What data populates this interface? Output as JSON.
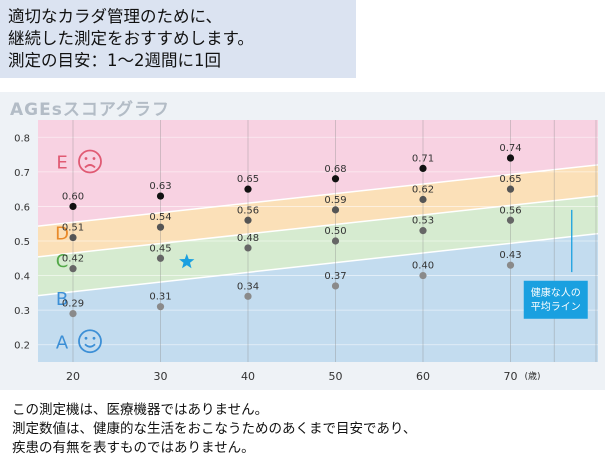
{
  "top_note": {
    "lines": [
      "適切なカラダ管理のために、",
      "継続した測定をおすすめします。",
      "測定の目安：1～2週間に1回"
    ]
  },
  "chart_title": "AGEsスコアグラフ",
  "chart_data": {
    "type": "line",
    "title": "AGEsスコアグラフ",
    "xlabel": "(歳)",
    "ylabel": "",
    "x": [
      20,
      30,
      40,
      50,
      60,
      70
    ],
    "xlim": [
      16,
      80
    ],
    "ylim": [
      0.15,
      0.85
    ],
    "yticks": [
      "0.2",
      "0.3",
      "0.4",
      "0.5",
      "0.6",
      "0.7",
      "0.8"
    ],
    "xticks": [
      "20",
      "30",
      "40",
      "50",
      "60",
      "70"
    ],
    "zone_labels": [
      "E",
      "D",
      "C",
      "B",
      "A"
    ],
    "zone_colors": [
      "#f8d2e2",
      "#fbe0b8",
      "#d6ebd0",
      "#c3dcef",
      "#c3dcef"
    ],
    "series": [
      {
        "values": [
          0.6,
          0.63,
          0.65,
          0.68,
          0.71,
          0.74
        ],
        "labels": [
          "0.60",
          "0.63",
          "0.65",
          "0.68",
          "0.71",
          "0.74"
        ],
        "color": "#111111"
      },
      {
        "values": [
          0.51,
          0.54,
          0.56,
          0.59,
          0.62,
          0.65
        ],
        "labels": [
          "0.51",
          "0.54",
          "0.56",
          "0.59",
          "0.62",
          "0.65"
        ],
        "color": "#555555"
      },
      {
        "values": [
          0.42,
          0.45,
          0.48,
          0.5,
          0.53,
          0.56
        ],
        "labels": [
          "0.42",
          "0.45",
          "0.48",
          "0.50",
          "0.53",
          "0.56"
        ],
        "color": "#666666"
      },
      {
        "values": [
          0.29,
          0.31,
          0.34,
          0.37,
          0.4,
          0.43
        ],
        "labels": [
          "0.29",
          "0.31",
          "0.34",
          "0.37",
          "0.40",
          "0.43"
        ],
        "color": "#8a8a8a"
      }
    ],
    "marker": {
      "x": 33,
      "y": 0.44,
      "color": "#1aa0e0"
    },
    "annotation": {
      "text": [
        "健康な人の",
        "平均ライン"
      ],
      "color": "#1aa0e0"
    },
    "grid": true
  },
  "bottom_note": {
    "lines": [
      "この測定機は、医療機器ではありません。",
      "測定数値は、健康的な生活をおこなうためのあくまで目安であり、",
      "疾患の有無を表すものではありません。"
    ]
  }
}
